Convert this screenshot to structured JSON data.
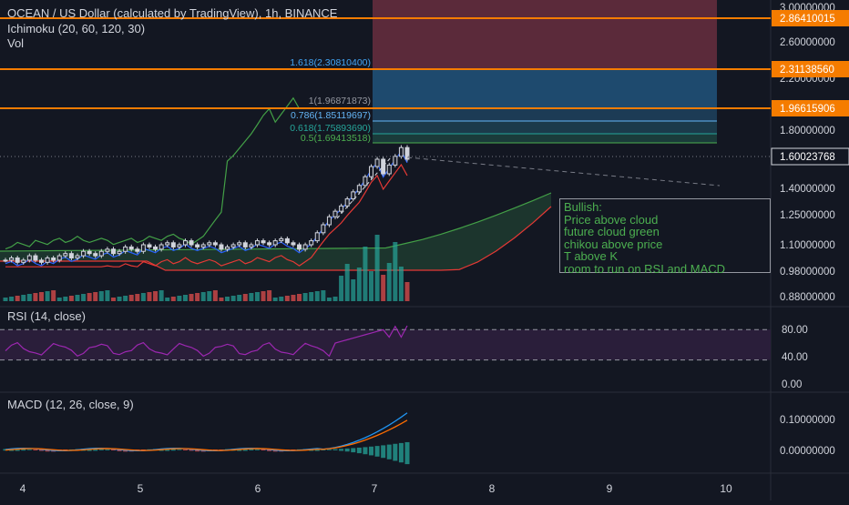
{
  "legend": {
    "symbol": "OCEAN / US Dollar (calculated by TradingView), 1h, BINANCE",
    "ichimoku": "Ichimoku (20, 60, 120, 30)",
    "volume": "Vol",
    "rsi": "RSI (14, close)",
    "macd": "MACD (12, 26, close, 9)"
  },
  "price_axis": {
    "ticks": [
      "3.00000000",
      "2.60000000",
      "2.20000000",
      "1.80000000",
      "1.40000000",
      "1.25000000",
      "1.10000000",
      "0.98000000",
      "0.88000000"
    ],
    "badges": [
      {
        "label": "2.86410015",
        "color": "#f57c00"
      },
      {
        "label": "2.31138560",
        "color": "#f57c00"
      },
      {
        "label": "1.96615906",
        "color": "#f57c00"
      },
      {
        "label": "1.60023768",
        "color": "#131722"
      }
    ]
  },
  "rsi_axis": {
    "ticks": [
      "80.00",
      "40.00",
      "0.00"
    ]
  },
  "macd_axis": {
    "ticks": [
      "0.10000000",
      "0.00000000"
    ]
  },
  "time_axis": {
    "ticks": [
      "4",
      "5",
      "6",
      "7",
      "8",
      "9",
      "10"
    ]
  },
  "fib_labels": [
    {
      "text": "1.618(2.30810400)",
      "color": "#42a5f5"
    },
    {
      "text": "1(1.96871873)",
      "color": "#9598a1"
    },
    {
      "text": "0.786(1.85119697)",
      "color": "#64b5f6"
    },
    {
      "text": "0.618(1.75893690)",
      "color": "#26a69a"
    },
    {
      "text": "0.5(1.69413518)",
      "color": "#4caf50"
    }
  ],
  "annotation": {
    "lines": [
      "Bullish:",
      "Price above cloud",
      "future cloud green",
      "chikou above price",
      "T above K",
      "room to run on RSI and MACD"
    ]
  },
  "colors": {
    "up": "#26a69a",
    "down": "#ef5350",
    "orange": "#f57c00",
    "candle": "#d1d4dc",
    "tenkan": "#2962ff",
    "kijun": "#e53935",
    "chikou": "#43a047",
    "rsi": "#9c27b0",
    "macd": "#2196f3",
    "signal": "#ff6d00"
  },
  "chart_data": {
    "type": "candlestick",
    "symbol": "OCEAN/USD",
    "timeframe": "1h",
    "x_labels": [
      "4",
      "5",
      "6",
      "7",
      "8",
      "9",
      "10"
    ],
    "horizontal_levels": [
      2.86410015,
      2.3113856,
      1.96615906
    ],
    "last_price": 1.60023768,
    "fibonacci": [
      {
        "level": "1.618",
        "price": 2.308104
      },
      {
        "level": "1",
        "price": 1.96871873
      },
      {
        "level": "0.786",
        "price": 1.85119697
      },
      {
        "level": "0.618",
        "price": 1.7589369
      },
      {
        "level": "0.5",
        "price": 1.69413518
      }
    ],
    "approx_close": [
      1.03,
      1.04,
      1.02,
      1.03,
      1.05,
      1.03,
      1.02,
      1.04,
      1.03,
      1.05,
      1.06,
      1.04,
      1.05,
      1.07,
      1.06,
      1.05,
      1.07,
      1.08,
      1.06,
      1.07,
      1.09,
      1.08,
      1.07,
      1.1,
      1.09,
      1.08,
      1.1,
      1.11,
      1.09,
      1.1,
      1.12,
      1.1,
      1.09,
      1.1,
      1.11,
      1.1,
      1.08,
      1.09,
      1.1,
      1.11,
      1.09,
      1.1,
      1.12,
      1.11,
      1.1,
      1.12,
      1.13,
      1.11,
      1.1,
      1.08,
      1.1,
      1.12,
      1.16,
      1.2,
      1.24,
      1.27,
      1.3,
      1.34,
      1.38,
      1.42,
      1.48,
      1.55,
      1.6,
      1.5,
      1.56,
      1.62,
      1.68,
      1.6
    ],
    "rsi_levels": [
      80,
      40
    ],
    "rsi_ylim": [
      0,
      100
    ],
    "macd_ylim": [
      0,
      0.12
    ]
  }
}
